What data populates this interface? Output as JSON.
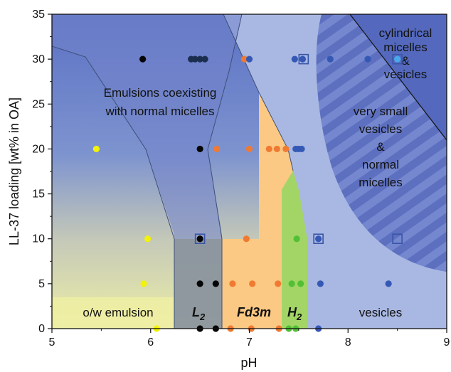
{
  "chart_data": {
    "type": "scatter",
    "title": "",
    "xlabel": "pH",
    "ylabel": "LL-37 loading [wt% in OA]",
    "xlim": [
      5,
      9
    ],
    "ylim": [
      0,
      35
    ],
    "x_ticks": [
      "5",
      "6",
      "7",
      "8",
      "9"
    ],
    "y_ticks": [
      "0",
      "5",
      "10",
      "15",
      "20",
      "25",
      "30",
      "35"
    ],
    "grid": false,
    "region_labels": {
      "emulsion_micelles": [
        "Emulsions coexisting",
        "with normal micelles"
      ],
      "ow_emulsion": "o/w emulsion",
      "l2": "L",
      "l2_sub": "2",
      "fd3m": "Fd3m",
      "h2": "H",
      "h2_sub": "2",
      "vesicles": "vesicles",
      "small_vesicles": [
        "very small",
        "vesicles",
        "&",
        "normal",
        "micelles"
      ],
      "cyl_micelles": [
        "cylindrical",
        "micelles",
        "&",
        "vesicles"
      ]
    },
    "colors": {
      "yellow": "#f2f20a",
      "black": "#050505",
      "navy": "#1c2e4f",
      "orange": "#f07a32",
      "green": "#52c035",
      "blue": "#3558b5",
      "light_blue": "#4aa8ea",
      "background_blue": "#a9b8e2",
      "dark_blue": "#5b71c4",
      "fd3m_fill": "#fbc984",
      "h2_fill": "#a3d566",
      "l2_fill": "#8d969b",
      "ow_fill": "#efefa3"
    },
    "series": [
      {
        "color": "yellow",
        "points": [
          [
            5.45,
            20
          ],
          [
            5.97,
            10
          ],
          [
            5.93,
            5
          ],
          [
            6.06,
            0
          ]
        ]
      },
      {
        "color": "black",
        "points": [
          [
            5.92,
            30
          ],
          [
            6.5,
            20
          ],
          [
            6.5,
            10
          ],
          [
            6.5,
            5
          ],
          [
            6.66,
            5
          ],
          [
            6.5,
            0
          ],
          [
            6.66,
            0
          ]
        ]
      },
      {
        "color": "navy",
        "points": [
          [
            6.41,
            30
          ],
          [
            6.45,
            30
          ],
          [
            6.5,
            30
          ],
          [
            6.55,
            30
          ]
        ]
      },
      {
        "color": "orange",
        "points": [
          [
            6.95,
            30
          ],
          [
            6.67,
            20
          ],
          [
            7.0,
            20
          ],
          [
            7.2,
            20
          ],
          [
            7.28,
            20
          ],
          [
            7.37,
            20
          ],
          [
            6.97,
            10
          ],
          [
            6.83,
            5
          ],
          [
            7.03,
            5
          ],
          [
            7.29,
            5
          ],
          [
            6.81,
            0
          ],
          [
            7.02,
            0
          ],
          [
            7.3,
            0
          ]
        ]
      },
      {
        "color": "green",
        "points": [
          [
            7.48,
            10
          ],
          [
            7.43,
            5
          ],
          [
            7.52,
            5
          ],
          [
            7.4,
            0
          ],
          [
            7.47,
            0
          ]
        ]
      },
      {
        "color": "blue",
        "points": [
          [
            7.0,
            30
          ],
          [
            7.46,
            30
          ],
          [
            7.54,
            30
          ],
          [
            7.82,
            30
          ],
          [
            8.2,
            30
          ],
          [
            7.47,
            20
          ],
          [
            7.5,
            20
          ],
          [
            7.53,
            20
          ],
          [
            7.7,
            10
          ],
          [
            7.72,
            5
          ],
          [
            8.41,
            5
          ],
          [
            7.7,
            0
          ]
        ]
      },
      {
        "color": "light_blue",
        "points": [
          [
            8.5,
            30
          ]
        ]
      }
    ],
    "open_squares": [
      [
        6.5,
        10
      ],
      [
        7.55,
        30
      ],
      [
        7.7,
        10
      ],
      [
        8.5,
        10
      ],
      [
        8.5,
        30
      ]
    ]
  }
}
